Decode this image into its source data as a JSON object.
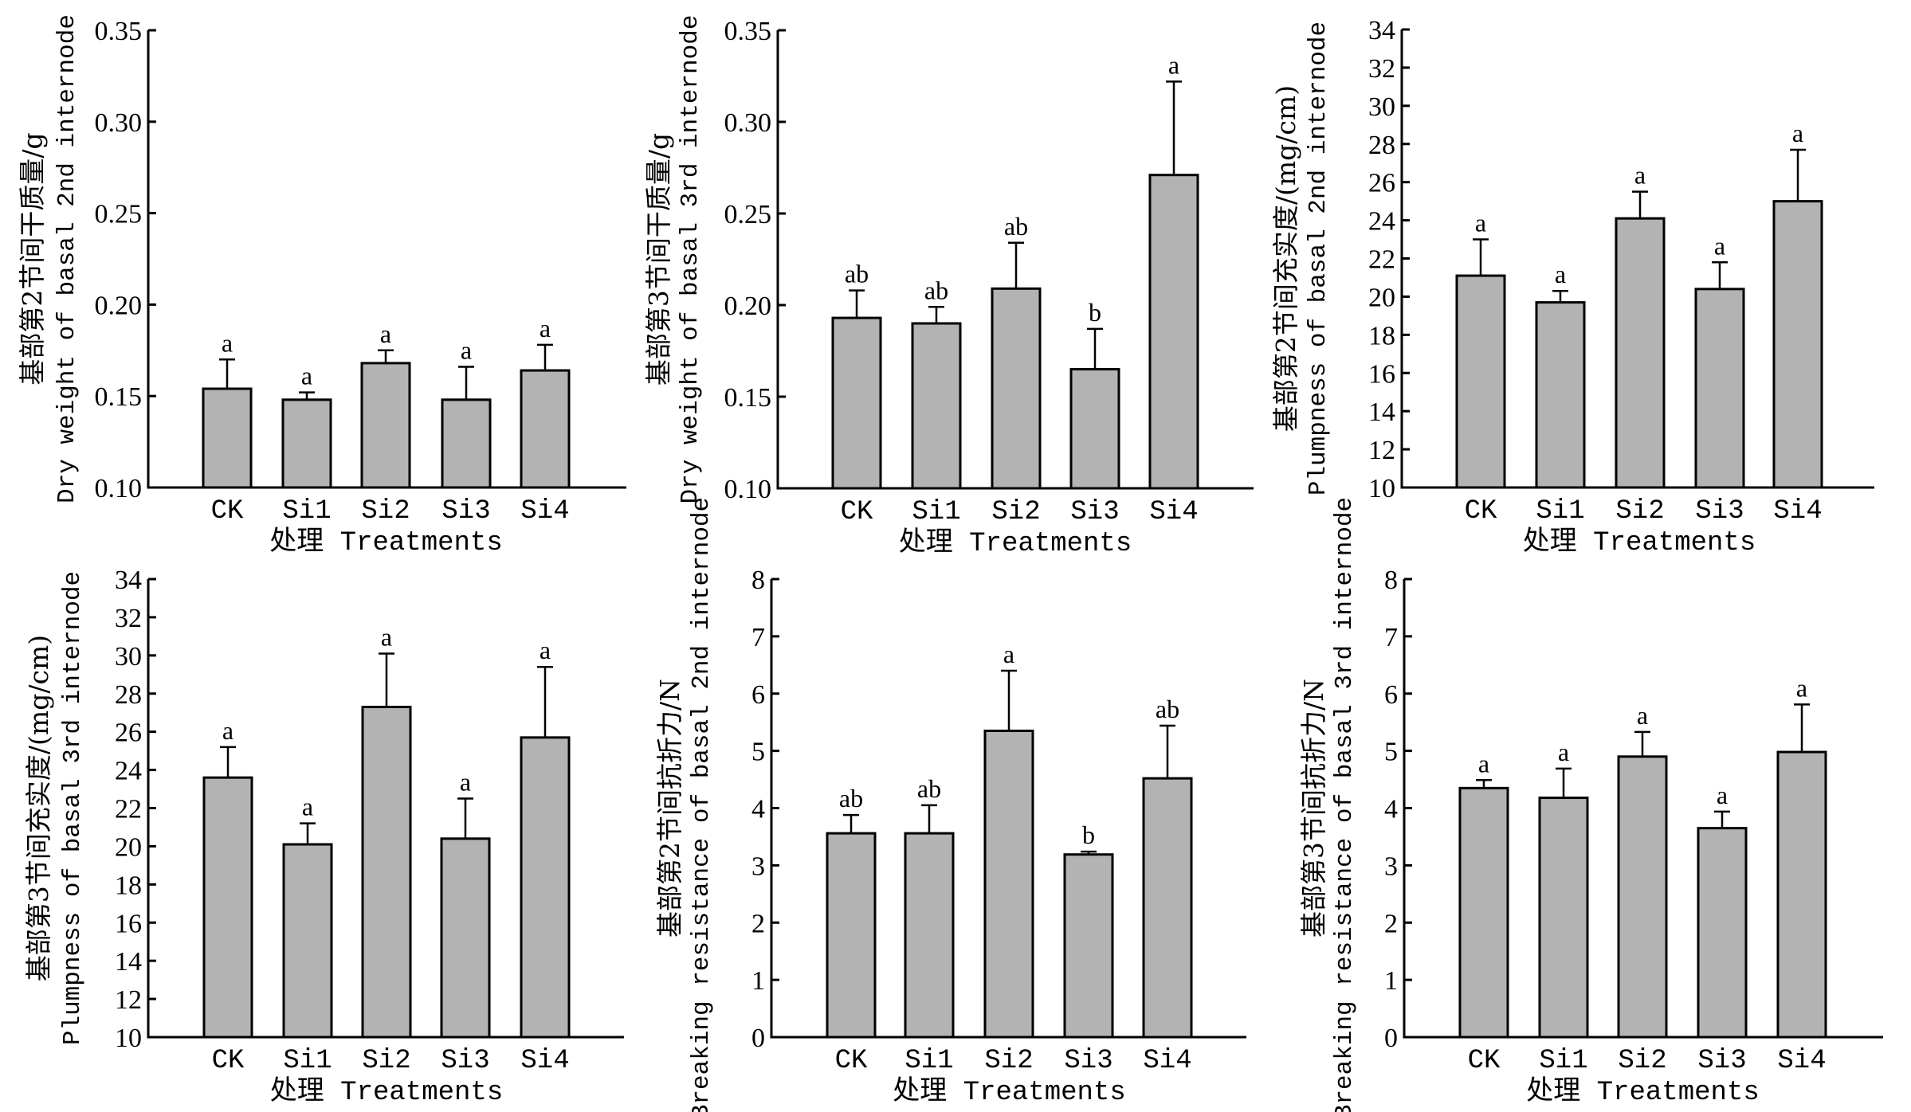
{
  "chart_data": [
    {
      "type": "bar",
      "title": "",
      "ylabel_cn": "基部第2节间干质量/g",
      "ylabel_en": "Dry weight of basal 2nd internode",
      "xlabel": "处理 Treatments",
      "categories": [
        "CK",
        "Si1",
        "Si2",
        "Si3",
        "Si4"
      ],
      "values": [
        0.154,
        0.148,
        0.168,
        0.148,
        0.164
      ],
      "error_upper": [
        0.17,
        0.152,
        0.175,
        0.166,
        0.178
      ],
      "significance": [
        "a",
        "a",
        "a",
        "a",
        "a"
      ],
      "ylim": [
        0.1,
        0.35
      ],
      "yticks": [
        "0.10",
        "0.15",
        "0.20",
        "0.25",
        "0.30",
        "0.35"
      ],
      "grid": false
    },
    {
      "type": "bar",
      "title": "",
      "ylabel_cn": "基部第3节间干质量/g",
      "ylabel_en": "Dry weight of basal 3rd internode",
      "xlabel": "处理 Treatments",
      "categories": [
        "CK",
        "Si1",
        "Si2",
        "Si3",
        "Si4"
      ],
      "values": [
        0.193,
        0.19,
        0.209,
        0.165,
        0.271
      ],
      "error_upper": [
        0.208,
        0.199,
        0.234,
        0.187,
        0.322
      ],
      "significance": [
        "ab",
        "ab",
        "ab",
        "b",
        "a"
      ],
      "ylim": [
        0.1,
        0.35
      ],
      "yticks": [
        "0.10",
        "0.15",
        "0.20",
        "0.25",
        "0.30",
        "0.35"
      ],
      "grid": false
    },
    {
      "type": "bar",
      "title": "",
      "ylabel_cn": "基部第2节间充实度/(mg/cm)",
      "ylabel_en": "Plumpness of basal 2nd internode",
      "xlabel": "处理 Treatments",
      "categories": [
        "CK",
        "Si1",
        "Si2",
        "Si3",
        "Si4"
      ],
      "values": [
        21.1,
        19.7,
        24.1,
        20.4,
        25.0
      ],
      "error_upper": [
        23.0,
        20.3,
        25.5,
        21.8,
        27.7
      ],
      "significance": [
        "a",
        "a",
        "a",
        "a",
        "a"
      ],
      "ylim": [
        10,
        34
      ],
      "yticks": [
        "10",
        "12",
        "14",
        "16",
        "18",
        "20",
        "22",
        "24",
        "26",
        "28",
        "30",
        "32",
        "34"
      ],
      "grid": false
    },
    {
      "type": "bar",
      "title": "",
      "ylabel_cn": "基部第3节间充实度/(mg/cm)",
      "ylabel_en": "Plumpness of basal 3rd internode",
      "xlabel": "处理 Treatments",
      "categories": [
        "CK",
        "Si1",
        "Si2",
        "Si3",
        "Si4"
      ],
      "values": [
        23.6,
        20.1,
        27.3,
        20.4,
        25.7
      ],
      "error_upper": [
        25.2,
        21.2,
        30.1,
        22.5,
        29.4
      ],
      "significance": [
        "a",
        "a",
        "a",
        "a",
        "a"
      ],
      "ylim": [
        10,
        34
      ],
      "yticks": [
        "10",
        "12",
        "14",
        "16",
        "18",
        "20",
        "22",
        "24",
        "26",
        "28",
        "30",
        "32",
        "34"
      ],
      "grid": false
    },
    {
      "type": "bar",
      "title": "",
      "ylabel_cn": "基部第2节间抗折力/N",
      "ylabel_en": "Breaking resistance of basal 2nd internode",
      "xlabel": "处理 Treatments",
      "categories": [
        "CK",
        "Si1",
        "Si2",
        "Si3",
        "Si4"
      ],
      "values": [
        3.56,
        3.56,
        5.35,
        3.19,
        4.52
      ],
      "error_upper": [
        3.88,
        4.05,
        6.4,
        3.24,
        5.44
      ],
      "significance": [
        "ab",
        "ab",
        "a",
        "b",
        "ab"
      ],
      "ylim": [
        0,
        8
      ],
      "yticks": [
        "0",
        "1",
        "2",
        "3",
        "4",
        "5",
        "6",
        "7",
        "8"
      ],
      "grid": false
    },
    {
      "type": "bar",
      "title": "",
      "ylabel_cn": "基部第3节间抗折力/N",
      "ylabel_en": "Breaking resistance of basal 3rd internode",
      "xlabel": "处理 Treatments",
      "categories": [
        "CK",
        "Si1",
        "Si2",
        "Si3",
        "Si4"
      ],
      "values": [
        4.35,
        4.18,
        4.9,
        3.65,
        4.98
      ],
      "error_upper": [
        4.49,
        4.69,
        5.33,
        3.94,
        5.81
      ],
      "significance": [
        "a",
        "a",
        "a",
        "a",
        "a"
      ],
      "ylim": [
        0,
        8
      ],
      "yticks": [
        "0",
        "1",
        "2",
        "3",
        "4",
        "5",
        "6",
        "7",
        "8"
      ],
      "grid": false
    }
  ],
  "colors": {
    "bar_fill": "#b3b3b3",
    "outline": "#000000"
  }
}
